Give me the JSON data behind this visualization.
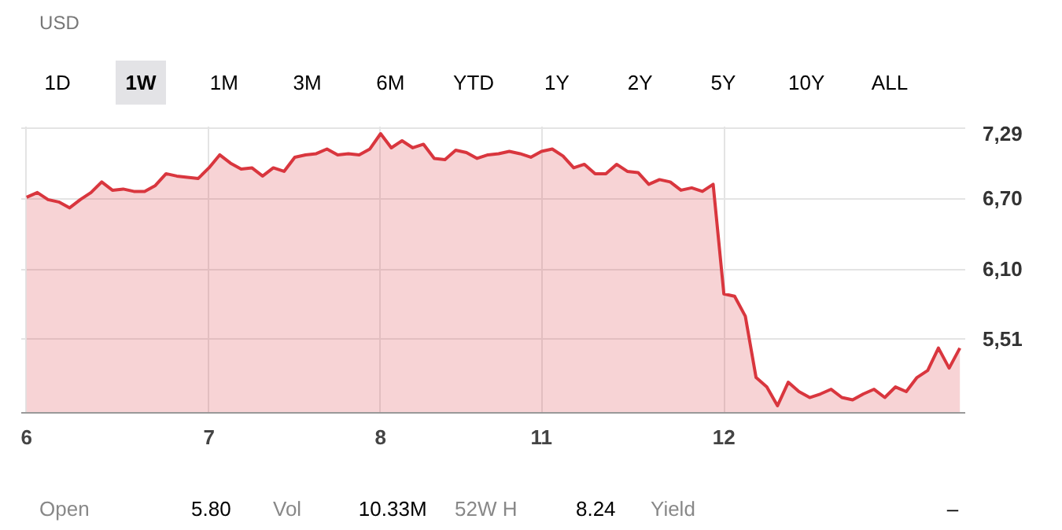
{
  "chart_data": {
    "type": "area",
    "title": "USD",
    "annotations": [
      "1D",
      "1W",
      "1M",
      "3M",
      "6M",
      "YTD",
      "1Y",
      "2Y",
      "5Y",
      "10Y",
      "ALL",
      "Open",
      "5.80",
      "Vol",
      "10.33M",
      "52W H",
      "8.24",
      "Yield",
      "–"
    ],
    "categories": [
      "6",
      null,
      null,
      null,
      null,
      null,
      null,
      null,
      null,
      null,
      null,
      null,
      null,
      null,
      null,
      null,
      null,
      "7",
      null,
      null,
      null,
      null,
      null,
      null,
      null,
      null,
      null,
      null,
      null,
      null,
      null,
      null,
      null,
      "8",
      null,
      null,
      null,
      null,
      null,
      null,
      null,
      null,
      null,
      null,
      null,
      null,
      null,
      null,
      "11",
      null,
      null,
      null,
      null,
      null,
      null,
      null,
      null,
      null,
      null,
      null,
      null,
      null,
      null,
      null,
      null,
      "12",
      null,
      null,
      null,
      null,
      null,
      null,
      null,
      null,
      null,
      null,
      null,
      null,
      null,
      null,
      null,
      null,
      null,
      null,
      null,
      null,
      null,
      null
    ],
    "series": [
      {
        "color": "#d9363e",
        "values": [
          6.71,
          6.75,
          6.69,
          6.67,
          6.62,
          6.69,
          6.75,
          6.84,
          6.77,
          6.78,
          6.76,
          6.76,
          6.81,
          6.91,
          6.89,
          6.88,
          6.87,
          6.96,
          7.07,
          7.0,
          6.95,
          6.96,
          6.89,
          6.96,
          6.93,
          7.05,
          7.07,
          7.08,
          7.12,
          7.07,
          7.08,
          7.07,
          7.12,
          7.25,
          7.13,
          7.19,
          7.13,
          7.16,
          7.04,
          7.03,
          7.11,
          7.09,
          7.04,
          7.07,
          7.08,
          7.1,
          7.08,
          7.05,
          7.1,
          7.12,
          7.06,
          6.96,
          6.99,
          6.91,
          6.91,
          6.99,
          6.93,
          6.92,
          6.82,
          6.86,
          6.84,
          6.77,
          6.79,
          6.76,
          6.82,
          5.89,
          5.87,
          5.7,
          5.18,
          5.1,
          4.94,
          5.14,
          5.06,
          5.01,
          5.04,
          5.08,
          5.01,
          4.99,
          5.04,
          5.08,
          5.01,
          5.1,
          5.06,
          5.18,
          5.24,
          5.43,
          5.26,
          5.43
        ]
      }
    ],
    "ylim": [
      4.88,
      7.31
    ],
    "yticks": [
      {
        "value": 5.51,
        "label": "5,51"
      },
      {
        "value": 6.1,
        "label": "6,10"
      },
      {
        "value": 6.7,
        "label": "6,70"
      },
      {
        "value": 7.29,
        "label": "7,29"
      }
    ],
    "grid": true
  }
}
